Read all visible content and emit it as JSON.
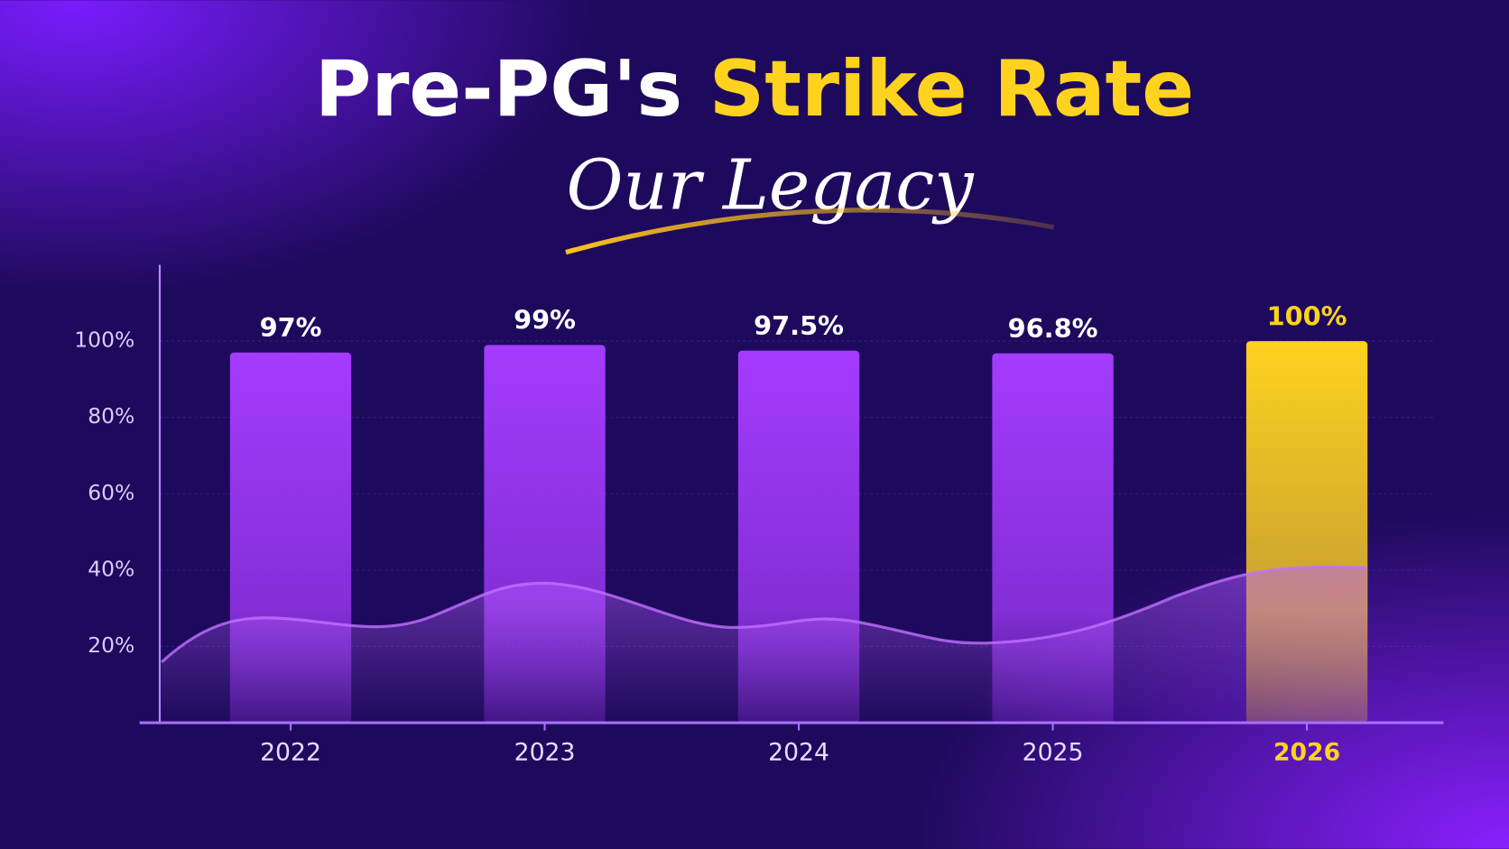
{
  "chart_data": {
    "type": "bar",
    "title_parts": [
      "Pre-PG's",
      "Strike Rate"
    ],
    "subtitle": "Our Legacy",
    "categories": [
      "2022",
      "2023",
      "2024",
      "2025",
      "2026"
    ],
    "values": [
      97,
      99,
      97.5,
      96.8,
      100
    ],
    "value_labels": [
      "97%",
      "99%",
      "97.5%",
      "96.8%",
      "100%"
    ],
    "colors": [
      "#a53bff",
      "#a53bff",
      "#a53bff",
      "#a53bff",
      "#ffd21f"
    ],
    "label_colors": [
      "#ffffff",
      "#ffffff",
      "#ffffff",
      "#ffffff",
      "#ffd21f"
    ],
    "ylim": [
      0,
      120
    ],
    "yticks": [
      {
        "value": 20,
        "label": "20%"
      },
      {
        "value": 40,
        "label": "40%"
      },
      {
        "value": 60,
        "label": "60%"
      },
      {
        "value": 80,
        "label": "80%"
      },
      {
        "value": 100,
        "label": "100%"
      }
    ],
    "grid": true
  }
}
